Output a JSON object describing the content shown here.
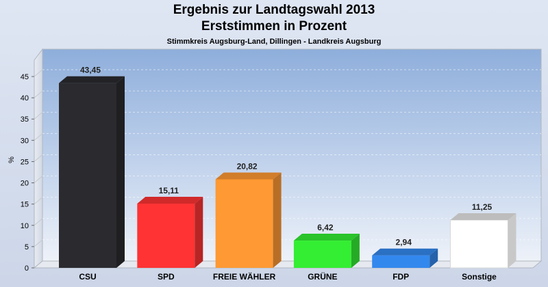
{
  "chart_data": {
    "type": "bar",
    "title": "Ergebnis zur Landtagswahl 2013",
    "title_line2": "Erststimmen in Prozent",
    "subtitle": "Stimmkreis Augsburg-Land, Dillingen - Landkreis Augsburg",
    "ylabel": "%",
    "xlabel": "",
    "ylim": [
      0,
      45
    ],
    "yticks": [
      0,
      5,
      10,
      15,
      20,
      25,
      30,
      35,
      40,
      45
    ],
    "categories": [
      "CSU",
      "SPD",
      "FREIE WÄHLER",
      "GRÜNE",
      "FDP",
      "Sonstige"
    ],
    "values": [
      43.45,
      15.11,
      20.82,
      6.42,
      2.94,
      11.25
    ],
    "value_labels": [
      "43,45",
      "15,11",
      "20,82",
      "6,42",
      "2,94",
      "11,25"
    ],
    "colors": [
      "#2b2b2f",
      "#ff3333",
      "#ff9933",
      "#33ee33",
      "#3388ee",
      "#ffffff"
    ],
    "grid": true
  }
}
